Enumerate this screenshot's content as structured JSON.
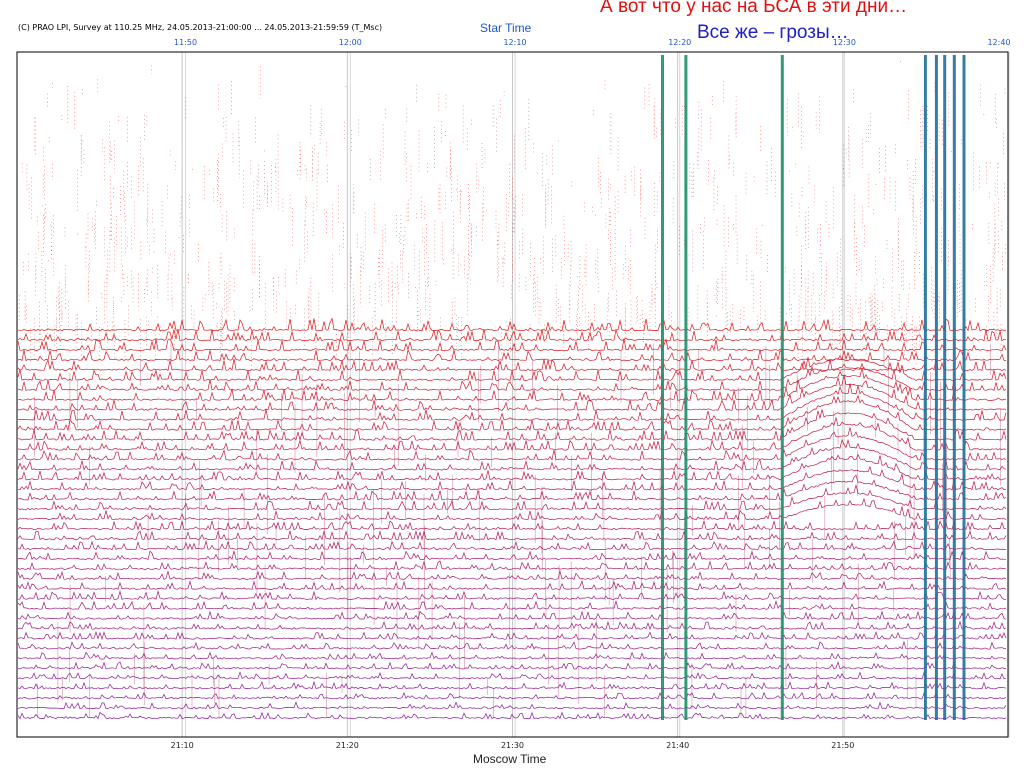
{
  "slide": {
    "title_line1": "А вот что у нас на БСА в эти дни…",
    "title_line2": "Все же – грозы…",
    "title_color": "#e01010",
    "subtitle_color": "#2020c0"
  },
  "chart_data": {
    "type": "line",
    "header": "(C) PRAO LPI, Survey at 110.25 MHz, 24.05.2013-21:00:00 ... 24.05.2013-21:59:59 (T_Msc)",
    "top_axis_title": "Star Time",
    "top_ticks": [
      "11:50",
      "12:00",
      "12:10",
      "12:20",
      "12:30",
      "12:40"
    ],
    "xlabel": "Moscow Time",
    "bottom_ticks": [
      "21:10",
      "21:20",
      "21:30",
      "21:40",
      "21:50"
    ],
    "xlim": [
      "21:00:00",
      "21:59:59"
    ],
    "grid": true,
    "series_count": 40,
    "colors": {
      "top_series": "#e01818",
      "bottom_series": "#8a1aa0",
      "burst": "#1a8f6a",
      "star_axis": "#1f57c8"
    },
    "interference_bursts_moscow_time": [
      "21:39:05",
      "21:40:30",
      "21:46:20",
      "21:55:00",
      "21:55:40",
      "21:56:10",
      "21:56:45",
      "21:57:20"
    ]
  }
}
